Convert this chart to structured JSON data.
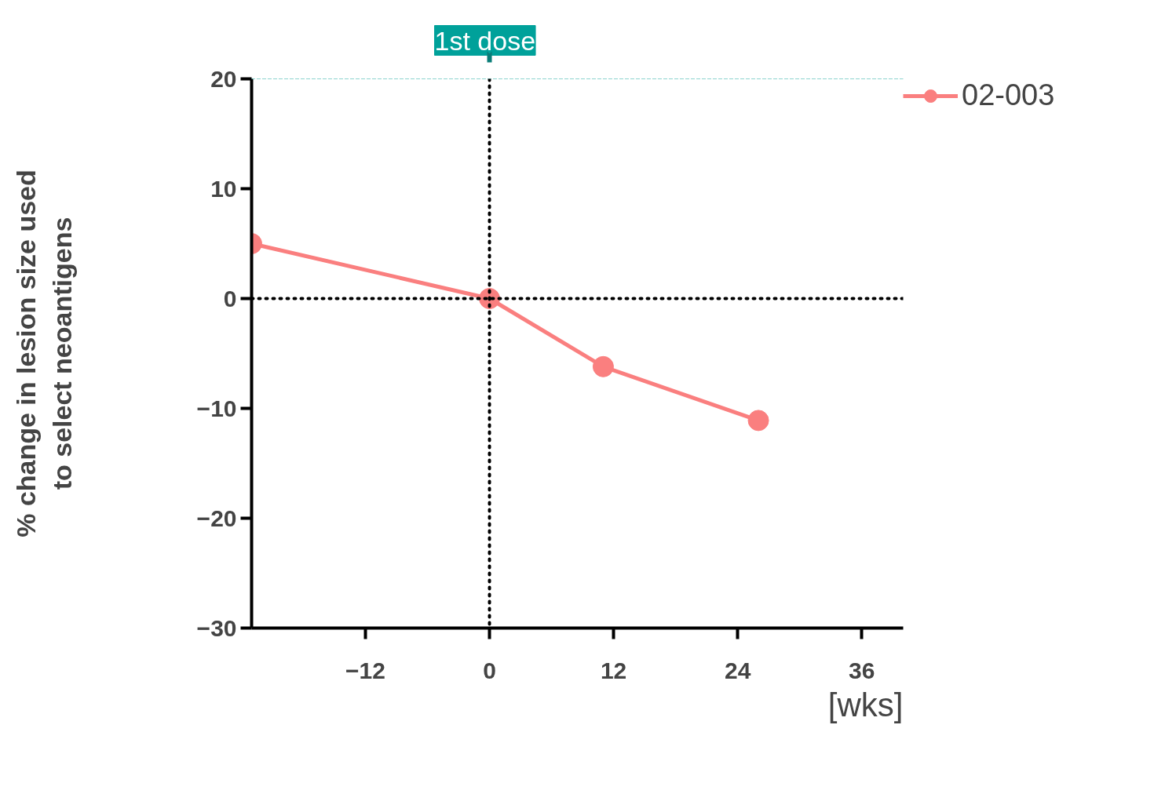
{
  "chart_data": {
    "type": "line",
    "ylabel": "% change in lesion size used\nto select neoantigens",
    "xlabel": "[wks]",
    "x": [
      -23,
      0,
      11,
      26
    ],
    "series": [
      {
        "name": "02-003",
        "color": "#fa7f7f",
        "values": [
          5,
          0,
          -6.2,
          -11.1
        ]
      }
    ],
    "xlim": [
      -23,
      40
    ],
    "xticks": [
      -12,
      0,
      12,
      24,
      36
    ],
    "ylim": [
      -30,
      20
    ],
    "yticks": [
      20,
      10,
      0,
      -10,
      -20,
      -30
    ],
    "ref_lines": [
      {
        "axis": "y",
        "value": 20,
        "color": "#1aa8a0",
        "line_style": "dashed"
      },
      {
        "axis": "y",
        "value": 0,
        "color": "#000000",
        "line_style": "dotted"
      },
      {
        "axis": "x",
        "value": 0,
        "color": "#000000",
        "line_style": "dotted",
        "label": "1st dose"
      }
    ],
    "grid": false,
    "legend": "top right",
    "marker": "circle",
    "line_style": "solid"
  }
}
